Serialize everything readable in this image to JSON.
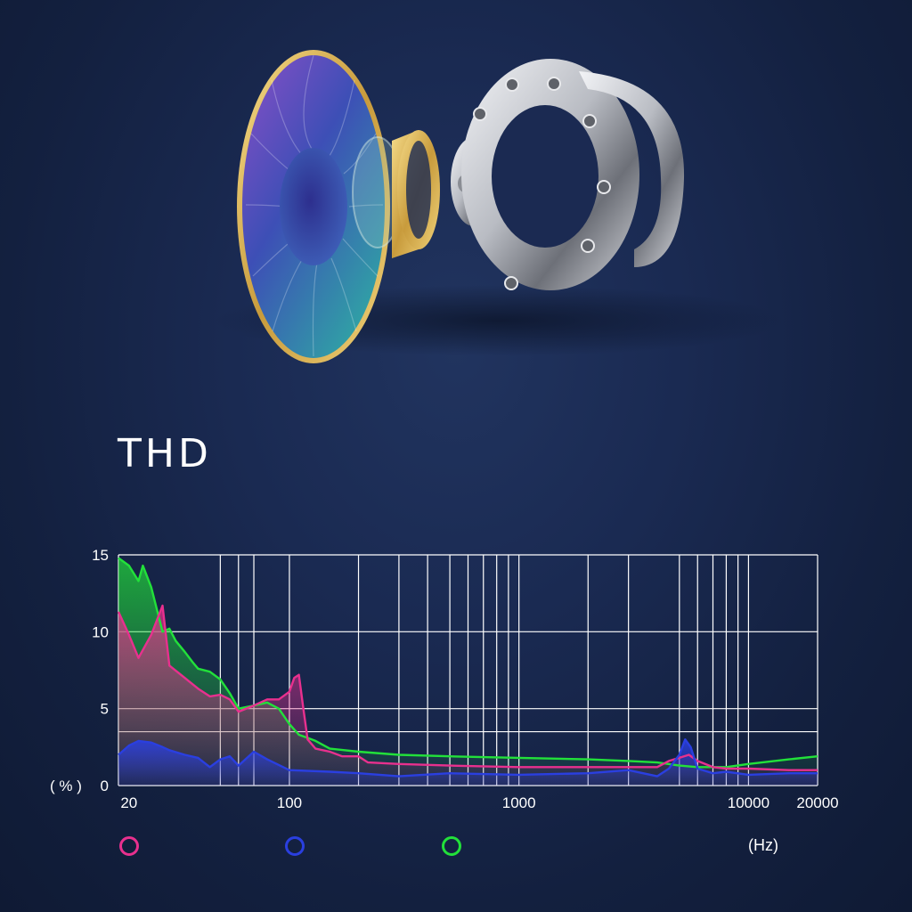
{
  "title": "THD",
  "colors": {
    "pink": "#e8308e",
    "blue": "#2a3fe0",
    "green": "#22e03a"
  },
  "chart_data": {
    "type": "area",
    "title": "THD",
    "x_scale": "log",
    "x_unit_label": "(Hz)",
    "y_unit_label": "( % )",
    "xlim": [
      18,
      20000
    ],
    "ylim": [
      0,
      15
    ],
    "x_tick_labels": [
      "20",
      "100",
      "1000",
      "10000",
      "20000"
    ],
    "x_ticks": [
      20,
      100,
      1000,
      10000,
      20000
    ],
    "y_tick_labels": [
      "15",
      "10",
      "5",
      "0"
    ],
    "y_ticks": [
      15,
      10,
      5,
      0
    ],
    "grid_x": [
      18,
      50,
      60,
      70,
      100,
      200,
      300,
      400,
      500,
      600,
      700,
      800,
      900,
      1000,
      2000,
      3000,
      5000,
      6000,
      7000,
      8000,
      9000,
      10000,
      20000
    ],
    "grid_y": [
      0,
      3.5,
      5,
      10,
      15
    ],
    "grid": true,
    "legend_placement": "bottom",
    "series": [
      {
        "color": "#e8308e",
        "x": [
          18,
          20,
          22,
          25,
          28,
          30,
          35,
          40,
          45,
          50,
          55,
          60,
          70,
          80,
          90,
          100,
          105,
          110,
          115,
          120,
          130,
          150,
          170,
          200,
          220,
          300,
          500,
          1000,
          2000,
          3000,
          4000,
          4500,
          5000,
          5500,
          6000,
          7000,
          8000,
          10000,
          15000,
          20000
        ],
        "y": [
          11.3,
          9.8,
          8.3,
          9.8,
          11.7,
          7.8,
          7.0,
          6.3,
          5.8,
          5.9,
          5.6,
          4.8,
          5.2,
          5.6,
          5.6,
          6.1,
          7.0,
          7.2,
          5.0,
          3.0,
          2.4,
          2.2,
          1.9,
          1.9,
          1.5,
          1.4,
          1.3,
          1.2,
          1.2,
          1.2,
          1.2,
          1.6,
          1.8,
          2.0,
          1.6,
          1.2,
          1.1,
          1.1,
          1.0,
          1.0
        ]
      },
      {
        "color": "#2a3fe0",
        "x": [
          18,
          20,
          22,
          25,
          28,
          30,
          35,
          40,
          45,
          50,
          55,
          60,
          70,
          80,
          100,
          150,
          200,
          300,
          500,
          1000,
          2000,
          3000,
          4000,
          4500,
          5000,
          5300,
          5600,
          6000,
          7000,
          8000,
          10000,
          15000,
          20000
        ],
        "y": [
          2.0,
          2.6,
          2.9,
          2.8,
          2.5,
          2.3,
          2.0,
          1.8,
          1.2,
          1.7,
          1.9,
          1.3,
          2.2,
          1.7,
          1.0,
          0.9,
          0.8,
          0.6,
          0.8,
          0.7,
          0.8,
          1.0,
          0.6,
          1.1,
          2.0,
          3.0,
          2.5,
          1.1,
          0.8,
          0.9,
          0.7,
          0.8,
          0.8
        ]
      },
      {
        "color": "#22e03a",
        "x": [
          18,
          20,
          22,
          23,
          25,
          28,
          30,
          32,
          35,
          38,
          40,
          45,
          50,
          55,
          60,
          70,
          80,
          90,
          100,
          110,
          120,
          130,
          150,
          200,
          300,
          500,
          1000,
          2000,
          3000,
          4000,
          5000,
          6000,
          8000,
          10000,
          15000,
          20000
        ],
        "y": [
          14.8,
          14.3,
          13.3,
          14.3,
          12.9,
          10.0,
          10.2,
          9.4,
          8.7,
          8.0,
          7.6,
          7.4,
          6.9,
          6.0,
          5.0,
          5.2,
          5.4,
          5.0,
          4.0,
          3.3,
          3.1,
          2.9,
          2.4,
          2.2,
          2.0,
          1.9,
          1.8,
          1.7,
          1.6,
          1.5,
          1.3,
          1.2,
          1.2,
          1.4,
          1.7,
          1.9
        ]
      }
    ]
  }
}
